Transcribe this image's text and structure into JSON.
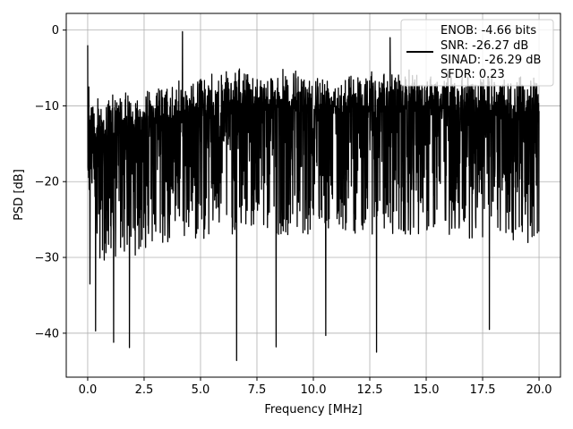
{
  "chart_data": {
    "type": "line",
    "title": "",
    "xlabel": "Frequency [MHz]",
    "ylabel": "PSD [dB]",
    "xlim": [
      -0.95,
      20.95
    ],
    "ylim": [
      -45.8,
      2.2
    ],
    "xticks": [
      0.0,
      2.5,
      5.0,
      7.5,
      10.0,
      12.5,
      15.0,
      17.5,
      20.0
    ],
    "xtick_labels": [
      "0.0",
      "2.5",
      "5.0",
      "7.5",
      "10.0",
      "12.5",
      "15.0",
      "17.5",
      "20.0"
    ],
    "yticks": [
      0,
      -10,
      -20,
      -30,
      -40
    ],
    "ytick_labels": [
      "0",
      "−10",
      "−20",
      "−30",
      "−40"
    ],
    "grid": true,
    "legend_position": "top-right",
    "series": [
      {
        "name": "",
        "color": "#000000",
        "x_range": [
          0,
          20
        ],
        "description": "dense noisy PSD trace, upper envelope near -5 to -2 dB, lower envelope near -25 to -40 dB",
        "spikes": [
          {
            "x": 0.0,
            "y": -2.0
          },
          {
            "x": 0.05,
            "y": -7.5
          },
          {
            "x": 0.1,
            "y": -33.5
          },
          {
            "x": 0.35,
            "y": -39.7
          },
          {
            "x": 1.15,
            "y": -41.2
          },
          {
            "x": 1.85,
            "y": -41.9
          },
          {
            "x": 4.2,
            "y": -0.2
          },
          {
            "x": 6.6,
            "y": -43.6
          },
          {
            "x": 8.35,
            "y": -41.8
          },
          {
            "x": 10.55,
            "y": -40.3
          },
          {
            "x": 12.8,
            "y": -42.5
          },
          {
            "x": 13.4,
            "y": -1.0
          },
          {
            "x": 17.8,
            "y": -39.5
          }
        ]
      }
    ],
    "legend": {
      "lines": [
        "ENOB: -4.66 bits",
        "SNR: -26.27 dB",
        "SINAD: -26.29 dB",
        "SFDR: 0.23"
      ]
    }
  }
}
